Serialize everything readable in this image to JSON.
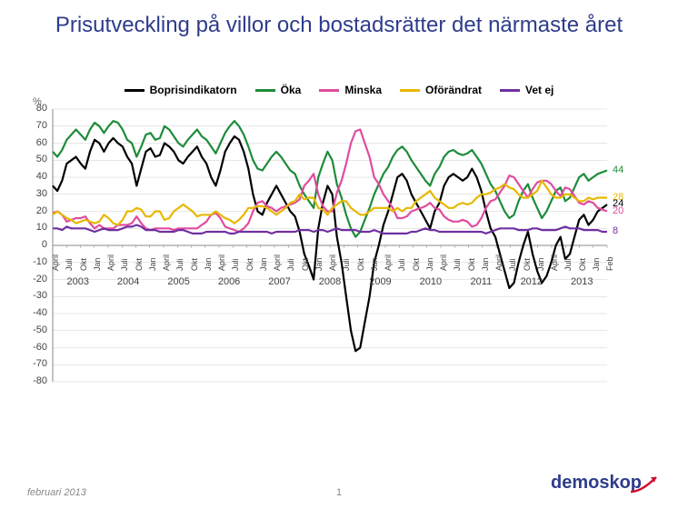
{
  "title": "Prisutveckling på villor och bostadsrätter det närmaste året",
  "y_unit": "%",
  "footer_date": "februari 2013",
  "footer_page": "1",
  "logo_text": "demoskop",
  "chart": {
    "type": "line",
    "background_color": "#ffffff",
    "grid_color": "#cfcfcf",
    "axis_color": "#888888",
    "ylim": [
      -80,
      80
    ],
    "ytick_step": 10,
    "xlim": [
      0,
      119
    ],
    "line_width": 2.2,
    "x_labels_minor": [
      "April",
      "Juli",
      "Okt",
      "Jan",
      "April",
      "Juli",
      "Okt",
      "Jan",
      "April",
      "Juli",
      "Okt",
      "Jan",
      "April",
      "Juli",
      "Okt",
      "Jan",
      "April",
      "Juli",
      "Okt",
      "Jan",
      "April",
      "Juli",
      "Okt",
      "Jan",
      "April",
      "Juli",
      "Okt",
      "Jan",
      "April",
      "Juli",
      "Okt",
      "Jan",
      "April",
      "Juli",
      "Okt",
      "Jan",
      "April",
      "Juli",
      "Okt",
      "Jan",
      "Feb"
    ],
    "x_labels_years": [
      "2003",
      "2004",
      "2005",
      "2006",
      "2007",
      "2008",
      "2009",
      "2010",
      "2011",
      "2012",
      "2013"
    ],
    "end_labels": [
      {
        "value": 44,
        "color": "#1e8c3a"
      },
      {
        "value": 28,
        "color": "#e6b800"
      },
      {
        "value": 24,
        "color": "#000000"
      },
      {
        "value": 20,
        "color": "#e04ca0"
      },
      {
        "value": 8,
        "color": "#7030a0"
      }
    ],
    "series": [
      {
        "name": "Boprisindikatorn",
        "color": "#000000",
        "values": [
          35,
          32,
          38,
          48,
          50,
          52,
          48,
          45,
          55,
          62,
          60,
          55,
          60,
          63,
          60,
          58,
          52,
          48,
          35,
          45,
          55,
          57,
          52,
          53,
          60,
          58,
          55,
          50,
          48,
          52,
          55,
          58,
          52,
          48,
          40,
          35,
          44,
          55,
          60,
          64,
          62,
          55,
          45,
          30,
          20,
          18,
          25,
          30,
          35,
          30,
          25,
          20,
          17,
          8,
          -5,
          -12,
          -20,
          10,
          25,
          35,
          30,
          5,
          -10,
          -30,
          -50,
          -62,
          -60,
          -45,
          -30,
          -10,
          0,
          12,
          20,
          30,
          40,
          42,
          38,
          30,
          25,
          20,
          15,
          10,
          20,
          25,
          35,
          40,
          42,
          40,
          38,
          40,
          45,
          40,
          32,
          20,
          10,
          5,
          -5,
          -15,
          -25,
          -22,
          -10,
          0,
          8,
          -5,
          -15,
          -22,
          -18,
          -10,
          0,
          5,
          -8,
          -5,
          5,
          15,
          18,
          12,
          15,
          20,
          22,
          24
        ]
      },
      {
        "name": "Öka",
        "color": "#1e8c3a",
        "values": [
          55,
          52,
          56,
          62,
          65,
          68,
          65,
          62,
          68,
          72,
          70,
          66,
          70,
          73,
          72,
          68,
          62,
          60,
          52,
          58,
          65,
          66,
          62,
          63,
          70,
          68,
          64,
          60,
          58,
          62,
          65,
          68,
          64,
          62,
          58,
          54,
          60,
          66,
          70,
          73,
          70,
          65,
          58,
          50,
          45,
          44,
          48,
          52,
          55,
          52,
          48,
          44,
          42,
          35,
          30,
          26,
          22,
          40,
          48,
          55,
          50,
          36,
          28,
          18,
          10,
          5,
          8,
          15,
          22,
          30,
          36,
          42,
          46,
          52,
          56,
          58,
          55,
          50,
          46,
          42,
          38,
          35,
          42,
          46,
          52,
          55,
          56,
          54,
          53,
          54,
          56,
          52,
          48,
          42,
          36,
          32,
          26,
          20,
          16,
          18,
          26,
          32,
          36,
          28,
          22,
          16,
          20,
          26,
          32,
          34,
          26,
          28,
          34,
          40,
          42,
          38,
          40,
          42,
          43,
          44
        ]
      },
      {
        "name": "Minska",
        "color": "#e04ca0",
        "values": [
          19,
          20,
          18,
          14,
          15,
          16,
          16,
          17,
          13,
          10,
          12,
          10,
          10,
          10,
          12,
          12,
          12,
          13,
          17,
          13,
          10,
          9,
          10,
          10,
          10,
          10,
          9,
          10,
          10,
          10,
          10,
          10,
          12,
          14,
          18,
          19,
          16,
          11,
          10,
          9,
          8,
          10,
          13,
          20,
          25,
          26,
          23,
          22,
          20,
          22,
          23,
          24,
          25,
          27,
          35,
          38,
          42,
          30,
          23,
          20,
          20,
          31,
          38,
          48,
          60,
          67,
          68,
          60,
          52,
          40,
          36,
          30,
          26,
          22,
          16,
          16,
          17,
          20,
          21,
          22,
          23,
          25,
          22,
          21,
          17,
          15,
          14,
          14,
          15,
          14,
          11,
          12,
          16,
          22,
          26,
          27,
          31,
          35,
          41,
          40,
          36,
          32,
          28,
          33,
          37,
          38,
          38,
          36,
          32,
          29,
          34,
          33,
          29,
          25,
          24,
          26,
          25,
          22,
          21,
          20
        ]
      },
      {
        "name": "Oförändrat",
        "color": "#e6b800",
        "values": [
          18,
          20,
          18,
          16,
          15,
          13,
          14,
          15,
          14,
          13,
          14,
          18,
          16,
          13,
          12,
          15,
          20,
          20,
          22,
          21,
          17,
          17,
          20,
          20,
          15,
          16,
          20,
          22,
          24,
          22,
          20,
          17,
          18,
          18,
          18,
          20,
          18,
          16,
          15,
          13,
          15,
          18,
          22,
          22,
          23,
          23,
          22,
          20,
          18,
          20,
          22,
          25,
          26,
          30,
          27,
          28,
          28,
          22,
          21,
          18,
          22,
          24,
          26,
          26,
          22,
          20,
          18,
          18,
          20,
          22,
          22,
          22,
          22,
          20,
          22,
          20,
          22,
          22,
          26,
          28,
          30,
          32,
          28,
          26,
          24,
          22,
          22,
          24,
          25,
          24,
          25,
          28,
          30,
          30,
          31,
          33,
          34,
          36,
          34,
          33,
          30,
          28,
          28,
          30,
          32,
          38,
          34,
          30,
          28,
          28,
          30,
          30,
          28,
          26,
          26,
          28,
          27,
          28,
          28,
          28
        ]
      },
      {
        "name": "Vet ej",
        "color": "#7030a0",
        "values": [
          10,
          10,
          9,
          11,
          10,
          10,
          10,
          10,
          9,
          8,
          9,
          10,
          9,
          9,
          9,
          10,
          11,
          11,
          12,
          11,
          9,
          9,
          9,
          8,
          8,
          8,
          8,
          9,
          9,
          8,
          7,
          7,
          7,
          8,
          8,
          8,
          8,
          8,
          7,
          7,
          8,
          8,
          8,
          8,
          8,
          8,
          8,
          7,
          8,
          8,
          8,
          8,
          8,
          9,
          9,
          9,
          8,
          9,
          9,
          8,
          9,
          10,
          9,
          9,
          9,
          9,
          8,
          8,
          8,
          9,
          8,
          7,
          7,
          7,
          7,
          7,
          7,
          8,
          8,
          9,
          10,
          9,
          9,
          8,
          8,
          8,
          8,
          8,
          8,
          8,
          8,
          8,
          8,
          7,
          8,
          9,
          10,
          10,
          10,
          10,
          9,
          9,
          9,
          10,
          10,
          9,
          9,
          9,
          9,
          10,
          11,
          10,
          10,
          10,
          9,
          9,
          9,
          9,
          8,
          8
        ]
      }
    ]
  }
}
